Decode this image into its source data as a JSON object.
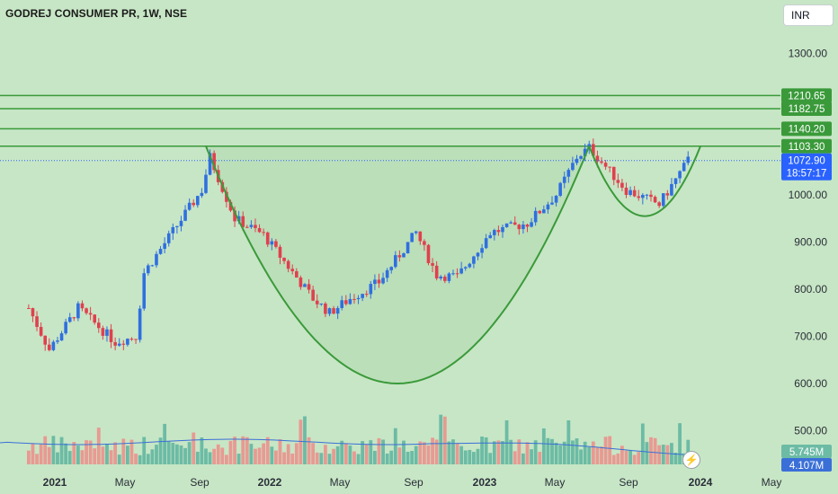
{
  "symbol_title": "GODREJ CONSUMER PR, 1W, NSE",
  "currency_button": "INR",
  "flash_icon_glyph": "⚡",
  "colors": {
    "background": "#c7e6c5",
    "up": "#2f6fe0",
    "down": "#e0404e",
    "level_line": "#3a9a3a",
    "cup_line": "#3a9a3a",
    "cup_fill": "#b7dcb4",
    "price_label": "#2962ff",
    "volume_up": "#6cbba5",
    "volume_down": "#e89a92",
    "volume_ma": "#3a6fd8"
  },
  "chart_data": {
    "type": "candlestick",
    "title": "GODREJ CONSUMER PR, 1W, NSE",
    "currency": "INR",
    "y_axis_ticks": [
      1300.0,
      1000.0,
      900.0,
      800.0,
      700.0,
      600.0,
      500.0
    ],
    "x_axis_ticks": [
      "2021",
      "May",
      "Sep",
      "2022",
      "May",
      "Sep",
      "2023",
      "May",
      "Sep",
      "2024",
      "May"
    ],
    "horizontal_levels": [
      {
        "value": 1210.65,
        "label": "1210.65"
      },
      {
        "value": 1182.75,
        "label": "1182.75"
      },
      {
        "value": 1140.2,
        "label": "1140.20"
      },
      {
        "value": 1103.3,
        "label": "1103.30"
      }
    ],
    "last_price": {
      "value": 1072.9,
      "label": "1072.90",
      "countdown": "18:57:17"
    },
    "volume_labels": {
      "volume": "5.745M",
      "volume_ma": "4.107M"
    },
    "price_path": [
      {
        "date": "2020-11-16",
        "price": 760
      },
      {
        "date": "2020-12-21",
        "price": 672
      },
      {
        "date": "2021-02-08",
        "price": 760
      },
      {
        "date": "2021-04-12",
        "price": 688
      },
      {
        "date": "2021-05-17",
        "price": 700
      },
      {
        "date": "2021-05-31",
        "price": 835
      },
      {
        "date": "2021-07-26",
        "price": 935
      },
      {
        "date": "2021-09-06",
        "price": 1010
      },
      {
        "date": "2021-09-20",
        "price": 1080
      },
      {
        "date": "2021-11-01",
        "price": 950
      },
      {
        "date": "2021-12-20",
        "price": 915
      },
      {
        "date": "2022-03-14",
        "price": 780
      },
      {
        "date": "2022-04-11",
        "price": 750
      },
      {
        "date": "2022-05-16",
        "price": 780
      },
      {
        "date": "2022-07-04",
        "price": 815
      },
      {
        "date": "2022-09-05",
        "price": 920
      },
      {
        "date": "2022-10-10",
        "price": 830
      },
      {
        "date": "2022-11-14",
        "price": 826
      },
      {
        "date": "2023-01-09",
        "price": 920
      },
      {
        "date": "2023-03-13",
        "price": 940
      },
      {
        "date": "2023-05-01",
        "price": 1000
      },
      {
        "date": "2023-06-05",
        "price": 1080
      },
      {
        "date": "2023-06-26",
        "price": 1100
      },
      {
        "date": "2023-08-28",
        "price": 1010
      },
      {
        "date": "2023-10-23",
        "price": 980
      },
      {
        "date": "2023-12-11",
        "price": 1072.9
      }
    ],
    "cup_and_handle": {
      "cup": {
        "start": "2021-09-13",
        "end": "2023-06-26",
        "rim_price": 1103.3,
        "bottom_price": 600
      },
      "handle": {
        "start": "2023-06-26",
        "end": "2024-01-01",
        "rim_price": 1103.3,
        "bottom_price": 955
      }
    },
    "grid": false
  }
}
